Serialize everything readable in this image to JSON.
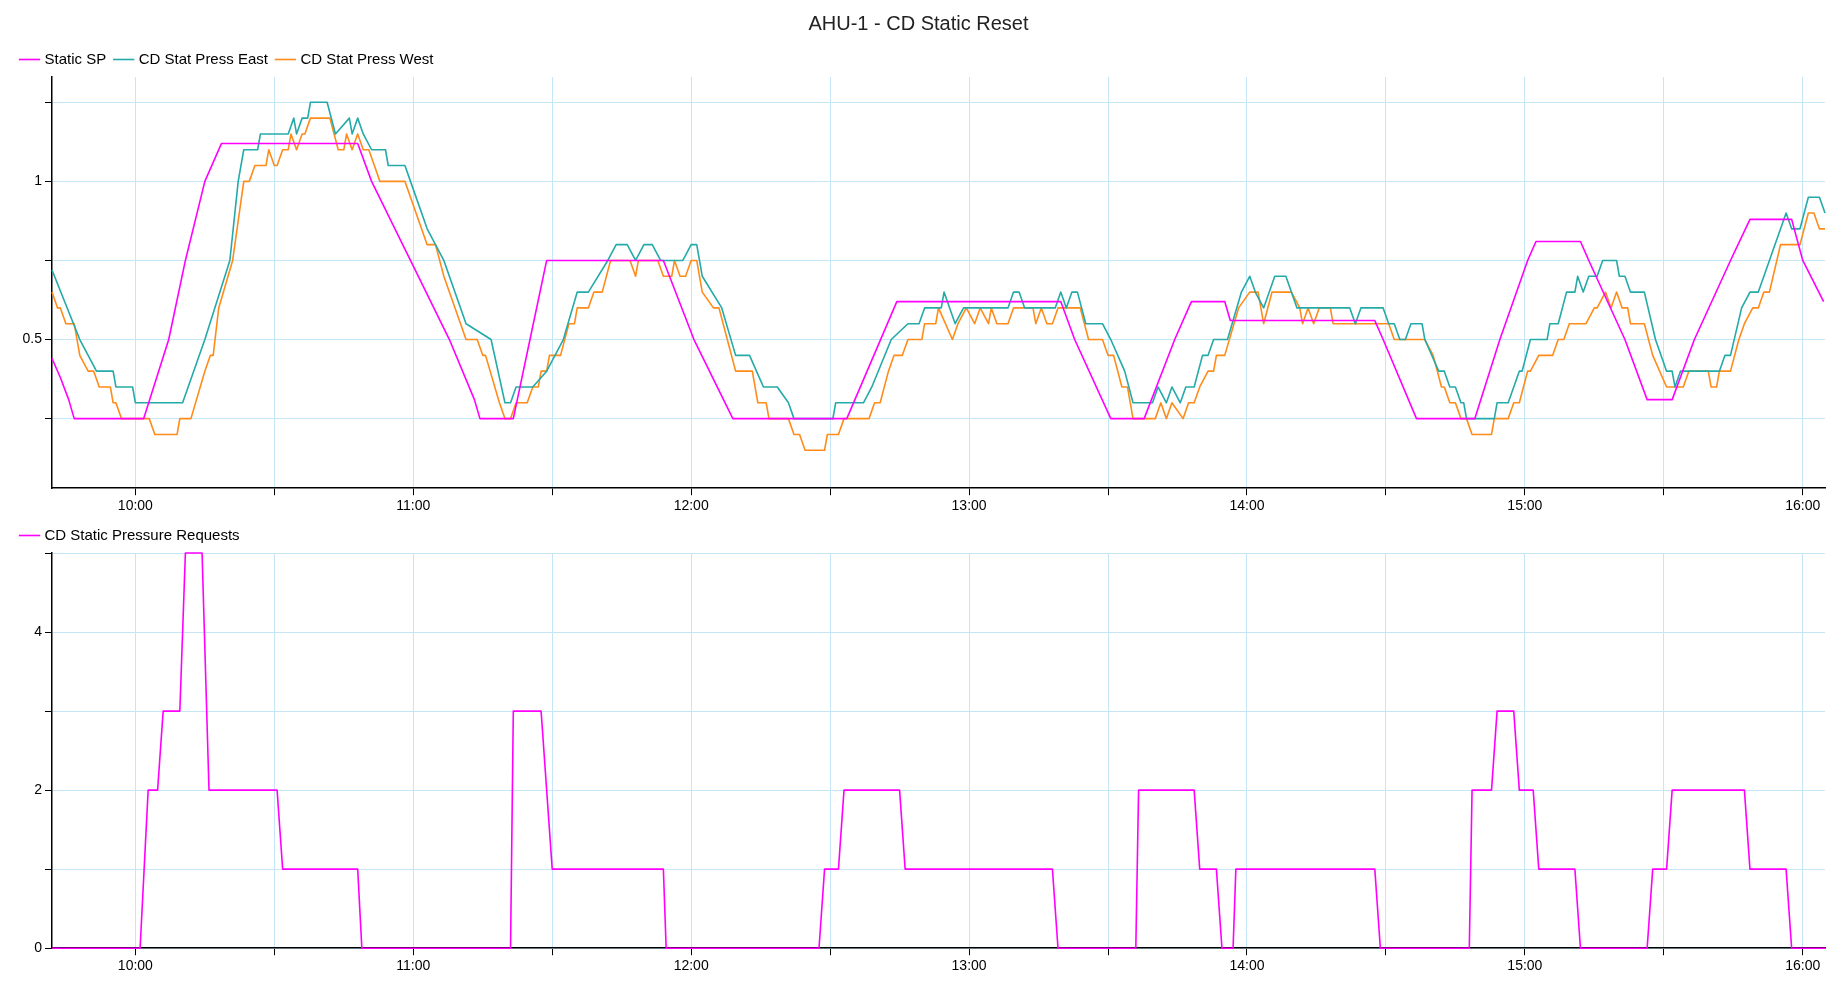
{
  "chart_data": [
    {
      "type": "line",
      "title": "AHU-1 - CD Static Reset",
      "grid": true,
      "legend": "top left",
      "xlim": [
        9.7,
        16.08
      ],
      "xticks": [
        {
          "value": 10,
          "label": "10:00"
        },
        {
          "value": 10.5,
          "label": null
        },
        {
          "value": 11,
          "label": "11:00"
        },
        {
          "value": 11.5,
          "label": null
        },
        {
          "value": 12,
          "label": "12:00"
        },
        {
          "value": 12.5,
          "label": null
        },
        {
          "value": 13,
          "label": "13:00"
        },
        {
          "value": 13.5,
          "label": null
        },
        {
          "value": 14,
          "label": "14:00"
        },
        {
          "value": 14.5,
          "label": null
        },
        {
          "value": 15,
          "label": "15:00"
        },
        {
          "value": 15.5,
          "label": null
        },
        {
          "value": 16,
          "label": "16:00"
        }
      ],
      "ylim": [
        0.03,
        1.33
      ],
      "yticks": [
        {
          "value": 0.25,
          "label": null
        },
        0.5,
        {
          "value": 0.75,
          "label": null
        },
        1,
        {
          "value": 1.25,
          "label": null
        }
      ],
      "series": [
        {
          "name": "Static SP",
          "color": "#ff00ff",
          "x": [
            9.7,
            9.73,
            9.76,
            9.78,
            10.03,
            10.12,
            10.18,
            10.25,
            10.31,
            10.8,
            10.85,
            10.99,
            11.13,
            11.22,
            11.24,
            11.36,
            11.42,
            11.48,
            11.9,
            12.01,
            12.15,
            12.56,
            12.74,
            13.33,
            13.38,
            13.51,
            13.63,
            13.74,
            13.8,
            13.92,
            13.94,
            14.46,
            14.49,
            14.61,
            14.82,
            14.91,
            15.01,
            15.04,
            15.2,
            15.23,
            15.36,
            15.44,
            15.53,
            15.61,
            15.74,
            15.81,
            15.96,
            16.0,
            16.075
          ],
          "values": [
            0.44,
            0.38,
            0.31,
            0.25,
            0.25,
            0.5,
            0.75,
            1,
            1.12,
            1.12,
            1,
            0.75,
            0.5,
            0.31,
            0.25,
            0.25,
            0.5,
            0.75,
            0.75,
            0.5,
            0.25,
            0.25,
            0.62,
            0.62,
            0.5,
            0.25,
            0.25,
            0.5,
            0.62,
            0.62,
            0.56,
            0.56,
            0.5,
            0.25,
            0.25,
            0.5,
            0.75,
            0.81,
            0.81,
            0.75,
            0.5,
            0.31,
            0.31,
            0.5,
            0.75,
            0.88,
            0.88,
            0.75,
            0.62
          ]
        },
        {
          "name": "CD Stat Press East",
          "color": "#24aaa8",
          "x": [
            9.7,
            9.8,
            9.86,
            9.92,
            9.93,
            9.99,
            10.0,
            10.17,
            10.25,
            10.34,
            10.37,
            10.39,
            10.44,
            10.45,
            10.55,
            10.57,
            10.58,
            10.6,
            10.62,
            10.63,
            10.69,
            10.72,
            10.77,
            10.78,
            10.8,
            10.82,
            10.85,
            10.9,
            10.91,
            10.97,
            10.99,
            11.05,
            11.11,
            11.19,
            11.28,
            11.33,
            11.35,
            11.37,
            11.43,
            11.48,
            11.54,
            11.59,
            11.63,
            11.7,
            11.73,
            11.77,
            11.8,
            11.83,
            11.86,
            11.89,
            11.97,
            12.0,
            12.02,
            12.04,
            12.11,
            12.16,
            12.21,
            12.26,
            12.31,
            12.35,
            12.37,
            12.51,
            12.52,
            12.62,
            12.65,
            12.72,
            12.78,
            12.82,
            12.84,
            12.9,
            12.91,
            12.95,
            12.98,
            13.14,
            13.16,
            13.18,
            13.2,
            13.31,
            13.33,
            13.35,
            13.37,
            13.39,
            13.42,
            13.48,
            13.51,
            13.56,
            13.59,
            13.66,
            13.68,
            13.71,
            13.73,
            13.76,
            13.78,
            13.81,
            13.84,
            13.86,
            13.88,
            13.93,
            13.98,
            14.01,
            14.03,
            14.06,
            14.1,
            14.14,
            14.18,
            14.37,
            14.39,
            14.41,
            14.49,
            14.51,
            14.53,
            14.55,
            14.57,
            14.59,
            14.63,
            14.64,
            14.69,
            14.71,
            14.73,
            14.75,
            14.77,
            14.78,
            14.79,
            14.89,
            14.9,
            14.94,
            14.98,
            14.99,
            15.02,
            15.08,
            15.09,
            15.12,
            15.15,
            15.18,
            15.19,
            15.21,
            15.23,
            15.26,
            15.28,
            15.33,
            15.34,
            15.36,
            15.38,
            15.43,
            15.47,
            15.51,
            15.53,
            15.54,
            15.56,
            15.7,
            15.72,
            15.74,
            15.78,
            15.81,
            15.84,
            15.88,
            15.94,
            15.96,
            15.99,
            16.02,
            16.06,
            16.08
          ],
          "values": [
            0.72,
            0.5,
            0.4,
            0.4,
            0.35,
            0.35,
            0.3,
            0.3,
            0.5,
            0.75,
            1,
            1.1,
            1.1,
            1.15,
            1.15,
            1.2,
            1.15,
            1.2,
            1.2,
            1.25,
            1.25,
            1.15,
            1.2,
            1.15,
            1.2,
            1.15,
            1.1,
            1.1,
            1.05,
            1.05,
            1,
            0.85,
            0.75,
            0.55,
            0.5,
            0.3,
            0.3,
            0.35,
            0.35,
            0.4,
            0.5,
            0.65,
            0.65,
            0.75,
            0.8,
            0.8,
            0.75,
            0.8,
            0.8,
            0.75,
            0.75,
            0.8,
            0.8,
            0.7,
            0.6,
            0.45,
            0.45,
            0.35,
            0.35,
            0.3,
            0.25,
            0.25,
            0.3,
            0.3,
            0.35,
            0.5,
            0.55,
            0.55,
            0.6,
            0.6,
            0.65,
            0.55,
            0.6,
            0.6,
            0.65,
            0.65,
            0.6,
            0.6,
            0.65,
            0.6,
            0.65,
            0.65,
            0.55,
            0.55,
            0.5,
            0.4,
            0.3,
            0.3,
            0.35,
            0.3,
            0.35,
            0.3,
            0.35,
            0.35,
            0.45,
            0.45,
            0.5,
            0.5,
            0.65,
            0.7,
            0.65,
            0.6,
            0.7,
            0.7,
            0.6,
            0.6,
            0.55,
            0.6,
            0.6,
            0.55,
            0.55,
            0.5,
            0.5,
            0.55,
            0.55,
            0.5,
            0.4,
            0.4,
            0.35,
            0.35,
            0.3,
            0.3,
            0.25,
            0.25,
            0.3,
            0.3,
            0.4,
            0.4,
            0.5,
            0.5,
            0.55,
            0.55,
            0.65,
            0.65,
            0.7,
            0.65,
            0.7,
            0.7,
            0.75,
            0.75,
            0.7,
            0.7,
            0.65,
            0.65,
            0.5,
            0.4,
            0.4,
            0.35,
            0.4,
            0.4,
            0.45,
            0.45,
            0.6,
            0.65,
            0.65,
            0.75,
            0.9,
            0.85,
            0.85,
            0.95,
            0.95,
            0.9
          ]
        },
        {
          "name": "CD Stat Press West",
          "color": "#ff8c1a",
          "x": [
            9.7,
            9.72,
            9.73,
            9.75,
            9.78,
            9.8,
            9.83,
            9.85,
            9.87,
            9.91,
            9.92,
            9.93,
            9.95,
            10.05,
            10.07,
            10.15,
            10.16,
            10.2,
            10.25,
            10.27,
            10.28,
            10.3,
            10.35,
            10.39,
            10.41,
            10.43,
            10.47,
            10.48,
            10.5,
            10.51,
            10.53,
            10.55,
            10.56,
            10.58,
            10.6,
            10.61,
            10.63,
            10.7,
            10.73,
            10.75,
            10.76,
            10.78,
            10.8,
            10.82,
            10.84,
            10.86,
            10.88,
            10.97,
            10.99,
            11.05,
            11.08,
            11.11,
            11.19,
            11.23,
            11.25,
            11.26,
            11.31,
            11.33,
            11.35,
            11.37,
            11.41,
            11.43,
            11.45,
            11.46,
            11.48,
            11.49,
            11.53,
            11.56,
            11.58,
            11.59,
            11.63,
            11.65,
            11.68,
            11.71,
            11.78,
            11.8,
            11.81,
            11.88,
            11.9,
            11.93,
            11.94,
            11.96,
            11.98,
            12.0,
            12.02,
            12.04,
            12.08,
            12.1,
            12.13,
            12.16,
            12.22,
            12.24,
            12.27,
            12.28,
            12.35,
            12.37,
            12.39,
            12.41,
            12.48,
            12.49,
            12.53,
            12.55,
            12.64,
            12.66,
            12.68,
            12.71,
            12.73,
            12.76,
            12.78,
            12.83,
            12.84,
            12.88,
            12.89,
            12.94,
            12.96,
            12.99,
            13.02,
            13.04,
            13.07,
            13.08,
            13.1,
            13.14,
            13.16,
            13.23,
            13.24,
            13.26,
            13.28,
            13.3,
            13.32,
            13.4,
            13.43,
            13.48,
            13.5,
            13.52,
            13.55,
            13.57,
            13.59,
            13.67,
            13.69,
            13.71,
            13.73,
            13.77,
            13.79,
            13.81,
            13.83,
            13.86,
            13.88,
            13.89,
            13.92,
            13.97,
            14.01,
            14.04,
            14.06,
            14.09,
            14.16,
            14.19,
            14.2,
            14.22,
            14.24,
            14.26,
            14.3,
            14.31,
            14.51,
            14.53,
            14.64,
            14.67,
            14.7,
            14.71,
            14.73,
            14.75,
            14.77,
            14.79,
            14.81,
            14.88,
            14.89,
            14.94,
            14.96,
            14.98,
            15.01,
            15.02,
            15.05,
            15.1,
            15.12,
            15.14,
            15.16,
            15.22,
            15.25,
            15.26,
            15.29,
            15.31,
            15.33,
            15.35,
            15.37,
            15.38,
            15.43,
            15.46,
            15.51,
            15.57,
            15.59,
            15.66,
            15.67,
            15.69,
            15.7,
            15.74,
            15.77,
            15.79,
            15.82,
            15.84,
            15.86,
            15.88,
            15.92,
            15.99,
            16.02,
            16.04,
            16.06,
            16.08
          ],
          "values": [
            0.65,
            0.6,
            0.6,
            0.55,
            0.55,
            0.45,
            0.4,
            0.4,
            0.35,
            0.35,
            0.3,
            0.3,
            0.25,
            0.25,
            0.2,
            0.2,
            0.25,
            0.25,
            0.4,
            0.45,
            0.45,
            0.6,
            0.75,
            1,
            1,
            1.05,
            1.05,
            1.1,
            1.05,
            1.05,
            1.1,
            1.1,
            1.15,
            1.1,
            1.15,
            1.15,
            1.2,
            1.2,
            1.1,
            1.1,
            1.15,
            1.1,
            1.15,
            1.1,
            1.1,
            1.05,
            1,
            1,
            0.95,
            0.8,
            0.8,
            0.7,
            0.5,
            0.5,
            0.45,
            0.45,
            0.3,
            0.25,
            0.25,
            0.3,
            0.3,
            0.35,
            0.35,
            0.4,
            0.4,
            0.45,
            0.45,
            0.55,
            0.55,
            0.6,
            0.6,
            0.65,
            0.65,
            0.75,
            0.75,
            0.7,
            0.75,
            0.75,
            0.7,
            0.7,
            0.75,
            0.7,
            0.7,
            0.75,
            0.75,
            0.65,
            0.6,
            0.6,
            0.5,
            0.4,
            0.4,
            0.3,
            0.3,
            0.25,
            0.25,
            0.2,
            0.2,
            0.15,
            0.15,
            0.2,
            0.2,
            0.25,
            0.25,
            0.3,
            0.3,
            0.4,
            0.45,
            0.45,
            0.5,
            0.5,
            0.55,
            0.55,
            0.6,
            0.5,
            0.55,
            0.6,
            0.55,
            0.6,
            0.55,
            0.6,
            0.55,
            0.55,
            0.6,
            0.6,
            0.55,
            0.6,
            0.55,
            0.55,
            0.6,
            0.6,
            0.5,
            0.5,
            0.45,
            0.45,
            0.35,
            0.35,
            0.25,
            0.25,
            0.3,
            0.25,
            0.3,
            0.25,
            0.3,
            0.3,
            0.35,
            0.4,
            0.4,
            0.45,
            0.45,
            0.6,
            0.65,
            0.65,
            0.55,
            0.65,
            0.65,
            0.6,
            0.55,
            0.6,
            0.55,
            0.6,
            0.6,
            0.55,
            0.55,
            0.5,
            0.5,
            0.45,
            0.35,
            0.35,
            0.3,
            0.3,
            0.25,
            0.25,
            0.2,
            0.2,
            0.25,
            0.25,
            0.3,
            0.3,
            0.4,
            0.4,
            0.45,
            0.45,
            0.5,
            0.5,
            0.55,
            0.55,
            0.6,
            0.6,
            0.65,
            0.6,
            0.65,
            0.6,
            0.6,
            0.55,
            0.55,
            0.45,
            0.35,
            0.35,
            0.4,
            0.4,
            0.35,
            0.35,
            0.4,
            0.4,
            0.5,
            0.55,
            0.6,
            0.6,
            0.65,
            0.65,
            0.8,
            0.8,
            0.9,
            0.9,
            0.85,
            0.85
          ]
        }
      ]
    },
    {
      "type": "line",
      "grid": true,
      "legend": "top left",
      "xlim": [
        9.7,
        16.08
      ],
      "xticks": [
        {
          "value": 10,
          "label": "10:00"
        },
        {
          "value": 10.5,
          "label": null
        },
        {
          "value": 11,
          "label": "11:00"
        },
        {
          "value": 11.5,
          "label": null
        },
        {
          "value": 12,
          "label": "12:00"
        },
        {
          "value": 12.5,
          "label": null
        },
        {
          "value": 13,
          "label": "13:00"
        },
        {
          "value": 13.5,
          "label": null
        },
        {
          "value": 14,
          "label": "14:00"
        },
        {
          "value": 14.5,
          "label": null
        },
        {
          "value": 15,
          "label": "15:00"
        },
        {
          "value": 15.5,
          "label": null
        },
        {
          "value": 16,
          "label": "16:00"
        }
      ],
      "ylim": [
        0,
        5
      ],
      "yticks": [
        0,
        {
          "value": 1,
          "label": null
        },
        2,
        {
          "value": 3,
          "label": null
        },
        4,
        {
          "value": 5,
          "label": null
        }
      ],
      "series": [
        {
          "name": "CD Static Pressure Requests",
          "color": "#ff00ff",
          "x": [
            9.7,
            10.017,
            10.046,
            10.08,
            10.1,
            10.16,
            10.18,
            10.24,
            10.265,
            10.51,
            10.53,
            10.8,
            10.815,
            11.35,
            11.36,
            11.46,
            11.5,
            11.9,
            11.91,
            12.46,
            12.48,
            12.53,
            12.55,
            12.75,
            12.77,
            13.3,
            13.32,
            13.6,
            13.61,
            13.81,
            13.83,
            13.89,
            13.91,
            13.95,
            13.96,
            14.46,
            14.48,
            14.8,
            14.81,
            14.88,
            14.9,
            14.96,
            14.98,
            15.03,
            15.05,
            15.18,
            15.2,
            15.44,
            15.46,
            15.51,
            15.53,
            15.79,
            15.81,
            15.94,
            15.96,
            16.08
          ],
          "values": [
            0,
            0,
            2,
            2,
            3,
            3,
            5,
            5,
            2,
            2,
            1,
            1,
            0,
            0,
            3,
            3,
            1,
            1,
            0,
            0,
            1,
            1,
            2,
            2,
            1,
            1,
            0,
            0,
            2,
            2,
            1,
            1,
            0,
            0,
            1,
            1,
            0,
            0,
            2,
            2,
            3,
            3,
            2,
            2,
            1,
            1,
            0,
            0,
            1,
            1,
            2,
            2,
            1,
            1,
            0,
            0
          ]
        }
      ]
    }
  ]
}
